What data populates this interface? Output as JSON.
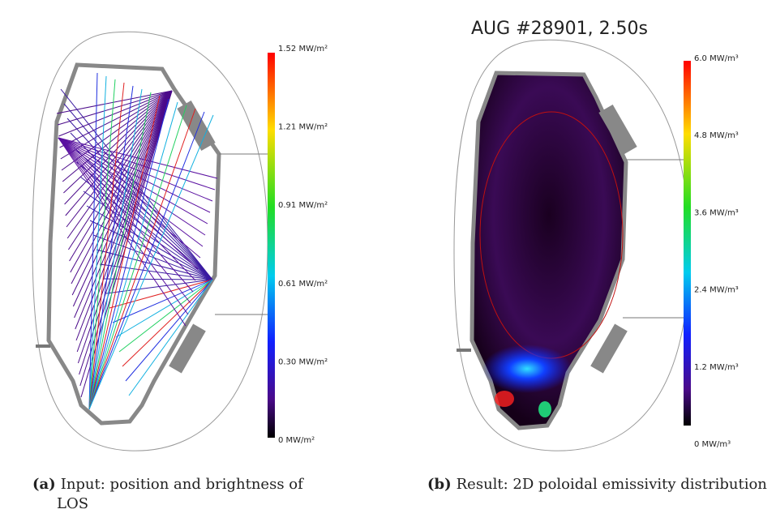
{
  "panels": [
    {
      "caption_label": "(a)",
      "caption": "Input: position and brightness of LOS",
      "colorbar_labels": [
        "1.52 MW/m²",
        "1.21 MW/m²",
        "0.91 MW/m²",
        "0.61 MW/m²",
        "0.30 MW/m²",
        "0  MW/m²"
      ]
    },
    {
      "title": "AUG #28901, 2.50s",
      "caption_label": "(b)",
      "caption": "Result: 2D poloidal emissivity distribution",
      "colorbar_labels": [
        "6.0 MW/m³",
        "4.8 MW/m³",
        "3.6 MW/m³",
        "2.4 MW/m³",
        "1.2 MW/m³",
        "0 MW/m³"
      ]
    }
  ]
}
